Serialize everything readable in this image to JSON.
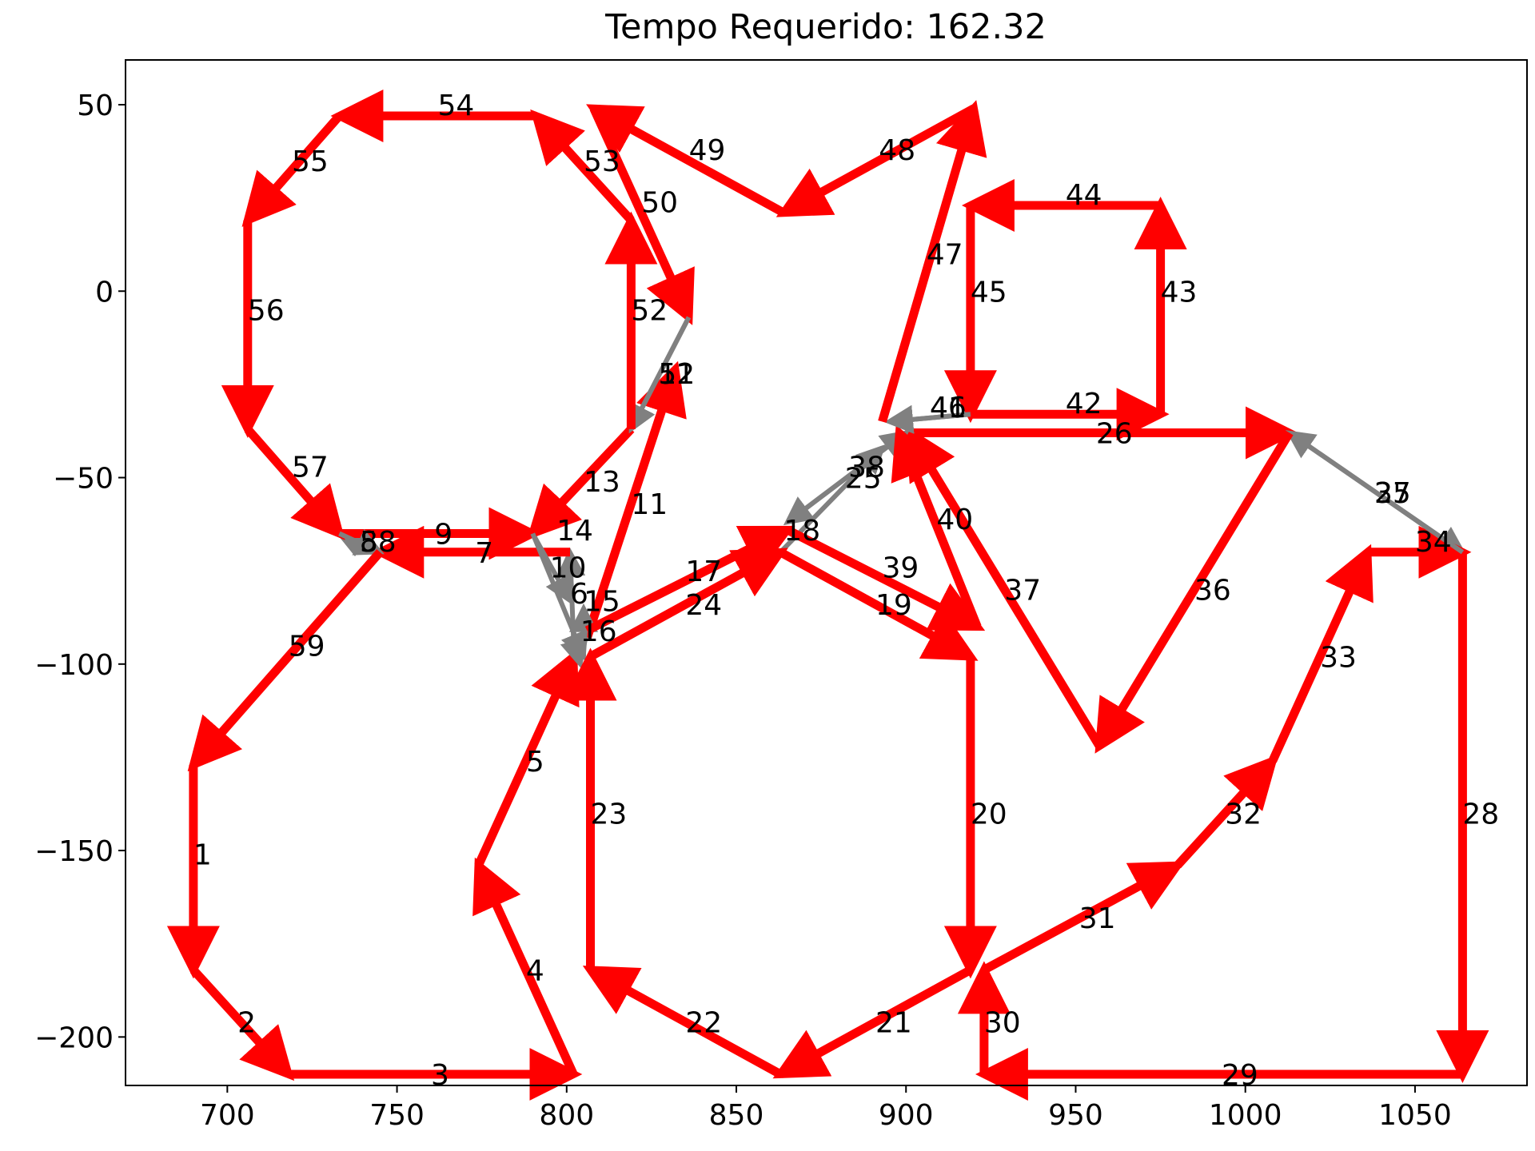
{
  "chart_data": {
    "type": "line",
    "title": "Tempo Requerido: 162.32",
    "xlabel": "",
    "ylabel": "",
    "xlim": [
      670,
      1083
    ],
    "ylim": [
      -213,
      62
    ],
    "xticks": [
      700,
      750,
      800,
      850,
      900,
      950,
      1000,
      1050
    ],
    "yticks": [
      50,
      0,
      -50,
      -100,
      -150,
      -200
    ],
    "xtick_labels": [
      "700",
      "750",
      "800",
      "850",
      "900",
      "950",
      "1000",
      "1050"
    ],
    "ytick_labels": [
      "50",
      "0",
      "−50",
      "−100",
      "−150",
      "−200"
    ],
    "grid": false,
    "colors": {
      "path": "#ff0000",
      "reposition": "#808080"
    },
    "segments": [
      {
        "label": "1",
        "from": [
          690,
          -127
        ],
        "to": [
          690,
          -182
        ],
        "color": "red"
      },
      {
        "label": "2",
        "from": [
          690,
          -182
        ],
        "to": [
          718,
          -210
        ],
        "color": "red"
      },
      {
        "label": "3",
        "from": [
          718,
          -210
        ],
        "to": [
          802,
          -210
        ],
        "color": "red"
      },
      {
        "label": "4",
        "from": [
          802,
          -210
        ],
        "to": [
          774,
          -154
        ],
        "color": "red"
      },
      {
        "label": "5",
        "from": [
          774,
          -154
        ],
        "to": [
          802,
          -98
        ],
        "color": "red"
      },
      {
        "label": "6",
        "from": [
          802,
          -93
        ],
        "to": [
          801,
          -70
        ],
        "color": "gray"
      },
      {
        "label": "7",
        "from": [
          801,
          -70
        ],
        "to": [
          745,
          -70
        ],
        "color": "red"
      },
      {
        "label": "8",
        "from": [
          745,
          -70
        ],
        "to": [
          733,
          -65
        ],
        "color": "gray"
      },
      {
        "label": "9",
        "from": [
          733,
          -65
        ],
        "to": [
          790,
          -65
        ],
        "color": "red"
      },
      {
        "label": "10",
        "from": [
          790,
          -65
        ],
        "to": [
          801,
          -83
        ],
        "color": "gray"
      },
      {
        "label": "11",
        "from": [
          806,
          -93
        ],
        "to": [
          832,
          -21
        ],
        "color": "red"
      },
      {
        "label": "12",
        "from": [
          836,
          -7
        ],
        "to": [
          819,
          -37
        ],
        "color": "gray"
      },
      {
        "label": "13",
        "from": [
          819,
          -37
        ],
        "to": [
          790,
          -65
        ],
        "color": "red"
      },
      {
        "label": "14",
        "from": [
          790,
          -65
        ],
        "to": [
          805,
          -98
        ],
        "color": "gray"
      },
      {
        "label": "15",
        "from": [
          805,
          -98
        ],
        "to": [
          805,
          -85
        ],
        "color": "gray"
      },
      {
        "label": "16",
        "from": [
          802,
          -93
        ],
        "to": [
          804,
          -100
        ],
        "color": "gray"
      },
      {
        "label": "17",
        "from": [
          806,
          -91
        ],
        "to": [
          865,
          -64
        ],
        "color": "red"
      },
      {
        "label": "18",
        "from": [
          863,
          -70
        ],
        "to": [
          893,
          -42
        ],
        "color": "gray"
      },
      {
        "label": "19",
        "from": [
          863,
          -70
        ],
        "to": [
          919,
          -98
        ],
        "color": "red"
      },
      {
        "label": "20",
        "from": [
          919,
          -98
        ],
        "to": [
          919,
          -182
        ],
        "color": "red"
      },
      {
        "label": "21",
        "from": [
          919,
          -182
        ],
        "to": [
          863,
          -210
        ],
        "color": "red"
      },
      {
        "label": "22",
        "from": [
          863,
          -210
        ],
        "to": [
          807,
          -182
        ],
        "color": "red"
      },
      {
        "label": "23",
        "from": [
          807,
          -182
        ],
        "to": [
          807,
          -98
        ],
        "color": "red"
      },
      {
        "label": "24",
        "from": [
          807,
          -98
        ],
        "to": [
          863,
          -70
        ],
        "color": "red"
      },
      {
        "label": "25",
        "from": [
          900,
          -38
        ],
        "to": [
          865,
          -62
        ],
        "color": "gray"
      },
      {
        "label": "26",
        "from": [
          900,
          -38
        ],
        "to": [
          1013,
          -38
        ],
        "color": "red"
      },
      {
        "label": "27",
        "from": [
          1013,
          -38
        ],
        "to": [
          1064,
          -70
        ],
        "color": "gray"
      },
      {
        "label": "28",
        "from": [
          1064,
          -70
        ],
        "to": [
          1064,
          -210
        ],
        "color": "red"
      },
      {
        "label": "29",
        "from": [
          1064,
          -210
        ],
        "to": [
          923,
          -210
        ],
        "color": "red"
      },
      {
        "label": "30",
        "from": [
          923,
          -210
        ],
        "to": [
          923,
          -182
        ],
        "color": "red"
      },
      {
        "label": "31",
        "from": [
          923,
          -182
        ],
        "to": [
          980,
          -154
        ],
        "color": "red"
      },
      {
        "label": "32",
        "from": [
          980,
          -154
        ],
        "to": [
          1008,
          -126
        ],
        "color": "red"
      },
      {
        "label": "33",
        "from": [
          1008,
          -126
        ],
        "to": [
          1036,
          -70
        ],
        "color": "red"
      },
      {
        "label": "34",
        "from": [
          1036,
          -70
        ],
        "to": [
          1064,
          -70
        ],
        "color": "red"
      },
      {
        "label": "35",
        "from": [
          1064,
          -70
        ],
        "to": [
          1013,
          -38
        ],
        "color": "gray"
      },
      {
        "label": "36",
        "from": [
          1013,
          -38
        ],
        "to": [
          957,
          -122
        ],
        "color": "red"
      },
      {
        "label": "37",
        "from": [
          957,
          -122
        ],
        "to": [
          901,
          -38
        ],
        "color": "red"
      },
      {
        "label": "38",
        "from": [
          865,
          -62
        ],
        "to": [
          900,
          -38
        ],
        "color": "gray"
      },
      {
        "label": "39",
        "from": [
          865,
          -64
        ],
        "to": [
          921,
          -90
        ],
        "color": "red"
      },
      {
        "label": "40",
        "from": [
          921,
          -90
        ],
        "to": [
          898,
          -38
        ],
        "color": "red"
      },
      {
        "label": "41",
        "from": [
          919,
          -33
        ],
        "to": [
          895,
          -35
        ],
        "color": "gray"
      },
      {
        "label": "42",
        "from": [
          919,
          -33
        ],
        "to": [
          975,
          -33
        ],
        "color": "red"
      },
      {
        "label": "43",
        "from": [
          975,
          -33
        ],
        "to": [
          975,
          23
        ],
        "color": "red"
      },
      {
        "label": "44",
        "from": [
          975,
          23
        ],
        "to": [
          919,
          23
        ],
        "color": "red"
      },
      {
        "label": "45",
        "from": [
          919,
          23
        ],
        "to": [
          919,
          -33
        ],
        "color": "red"
      },
      {
        "label": "46",
        "from": [
          919,
          -33
        ],
        "to": [
          895,
          -35
        ],
        "color": "gray"
      },
      {
        "label": "47",
        "from": [
          893,
          -35
        ],
        "to": [
          920,
          49
        ],
        "color": "red"
      },
      {
        "label": "48",
        "from": [
          920,
          49
        ],
        "to": [
          864,
          21
        ],
        "color": "red"
      },
      {
        "label": "49",
        "from": [
          864,
          21
        ],
        "to": [
          808,
          49
        ],
        "color": "red"
      },
      {
        "label": "50",
        "from": [
          808,
          49
        ],
        "to": [
          836,
          -7
        ],
        "color": "red"
      },
      {
        "label": "51",
        "from": [
          836,
          -7
        ],
        "to": [
          819,
          -37
        ],
        "color": "gray"
      },
      {
        "label": "52",
        "from": [
          819,
          -37
        ],
        "to": [
          819,
          19
        ],
        "color": "red"
      },
      {
        "label": "53",
        "from": [
          819,
          19
        ],
        "to": [
          791,
          47
        ],
        "color": "red"
      },
      {
        "label": "54",
        "from": [
          791,
          47
        ],
        "to": [
          733,
          47
        ],
        "color": "red"
      },
      {
        "label": "55",
        "from": [
          733,
          47
        ],
        "to": [
          706,
          19
        ],
        "color": "red"
      },
      {
        "label": "56",
        "from": [
          706,
          19
        ],
        "to": [
          706,
          -37
        ],
        "color": "red"
      },
      {
        "label": "57",
        "from": [
          706,
          -37
        ],
        "to": [
          733,
          -65
        ],
        "color": "red"
      },
      {
        "label": "58",
        "from": [
          733,
          -65
        ],
        "to": [
          745,
          -70
        ],
        "color": "gray"
      },
      {
        "label": "59",
        "from": [
          745,
          -70
        ],
        "to": [
          690,
          -127
        ],
        "color": "red"
      }
    ],
    "label_positions": [
      {
        "label": "1",
        "at": [
          690,
          -151
        ]
      },
      {
        "label": "2",
        "at": [
          703,
          -196
        ]
      },
      {
        "label": "3",
        "at": [
          760,
          -210
        ]
      },
      {
        "label": "4",
        "at": [
          788,
          -182
        ]
      },
      {
        "label": "5",
        "at": [
          788,
          -126
        ]
      },
      {
        "label": "6",
        "at": [
          801,
          -81
        ]
      },
      {
        "label": "7",
        "at": [
          773,
          -70
        ]
      },
      {
        "label": "8",
        "at": [
          739,
          -67
        ]
      },
      {
        "label": "9",
        "at": [
          761,
          -65
        ]
      },
      {
        "label": "10",
        "at": [
          795,
          -74
        ]
      },
      {
        "label": "11",
        "at": [
          819,
          -57
        ]
      },
      {
        "label": "12",
        "at": [
          827,
          -22
        ]
      },
      {
        "label": "13",
        "at": [
          805,
          -51
        ]
      },
      {
        "label": "14",
        "at": [
          797,
          -64
        ]
      },
      {
        "label": "15",
        "at": [
          805,
          -83
        ]
      },
      {
        "label": "16",
        "at": [
          804,
          -91
        ]
      },
      {
        "label": "17",
        "at": [
          835,
          -75
        ]
      },
      {
        "label": "18",
        "at": [
          864,
          -64
        ]
      },
      {
        "label": "19",
        "at": [
          891,
          -84
        ]
      },
      {
        "label": "20",
        "at": [
          919,
          -140
        ]
      },
      {
        "label": "21",
        "at": [
          891,
          -196
        ]
      },
      {
        "label": "22",
        "at": [
          835,
          -196
        ]
      },
      {
        "label": "23",
        "at": [
          807,
          -140
        ]
      },
      {
        "label": "24",
        "at": [
          835,
          -84
        ]
      },
      {
        "label": "25",
        "at": [
          882,
          -50
        ]
      },
      {
        "label": "26",
        "at": [
          956,
          -38
        ]
      },
      {
        "label": "27",
        "at": [
          1038,
          -54
        ]
      },
      {
        "label": "28",
        "at": [
          1064,
          -140
        ]
      },
      {
        "label": "29",
        "at": [
          993,
          -210
        ]
      },
      {
        "label": "30",
        "at": [
          923,
          -196
        ]
      },
      {
        "label": "31",
        "at": [
          951,
          -168
        ]
      },
      {
        "label": "32",
        "at": [
          994,
          -140
        ]
      },
      {
        "label": "33",
        "at": [
          1022,
          -98
        ]
      },
      {
        "label": "34",
        "at": [
          1050,
          -67
        ]
      },
      {
        "label": "35",
        "at": [
          1038,
          -54
        ]
      },
      {
        "label": "36",
        "at": [
          985,
          -80
        ]
      },
      {
        "label": "37",
        "at": [
          929,
          -80
        ]
      },
      {
        "label": "38",
        "at": [
          883,
          -47
        ]
      },
      {
        "label": "39",
        "at": [
          893,
          -74
        ]
      },
      {
        "label": "40",
        "at": [
          909,
          -61
        ]
      },
      {
        "label": "41",
        "at": [
          907,
          -31
        ]
      },
      {
        "label": "42",
        "at": [
          947,
          -30
        ]
      },
      {
        "label": "43",
        "at": [
          975,
          0
        ]
      },
      {
        "label": "44",
        "at": [
          947,
          26
        ]
      },
      {
        "label": "45",
        "at": [
          919,
          0
        ]
      },
      {
        "label": "46",
        "at": [
          907,
          -31
        ]
      },
      {
        "label": "47",
        "at": [
          906,
          10
        ]
      },
      {
        "label": "48",
        "at": [
          892,
          38
        ]
      },
      {
        "label": "49",
        "at": [
          836,
          38
        ]
      },
      {
        "label": "50",
        "at": [
          822,
          24
        ]
      },
      {
        "label": "51",
        "at": [
          827,
          -22
        ]
      },
      {
        "label": "52",
        "at": [
          819,
          -5
        ]
      },
      {
        "label": "53",
        "at": [
          805,
          35
        ]
      },
      {
        "label": "54",
        "at": [
          762,
          50
        ]
      },
      {
        "label": "55",
        "at": [
          719,
          35
        ]
      },
      {
        "label": "56",
        "at": [
          706,
          -5
        ]
      },
      {
        "label": "57",
        "at": [
          719,
          -47
        ]
      },
      {
        "label": "58",
        "at": [
          739,
          -67
        ]
      },
      {
        "label": "59",
        "at": [
          718,
          -95
        ]
      }
    ]
  }
}
